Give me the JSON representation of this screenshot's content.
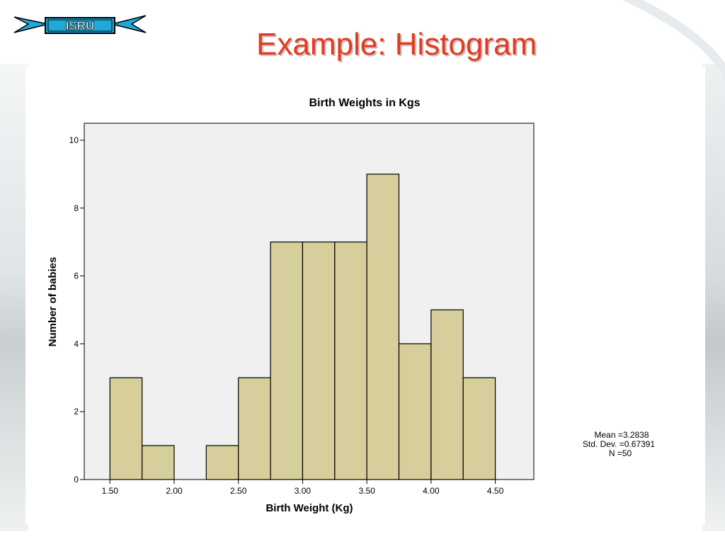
{
  "slide": {
    "title": "Example: Histogram",
    "logo_text": "ISRU",
    "colors": {
      "title": "#e8391f",
      "bar_fill": "#d6cf9b",
      "plot_bg": "#f0f0f0",
      "logo_fill": "#1fa9d8"
    }
  },
  "chart_data": {
    "type": "bar",
    "title": "Birth Weights in Kgs",
    "xlabel": "Birth Weight (Kg)",
    "ylabel": "Number of babies",
    "bin_width": 0.25,
    "bins": [
      {
        "start": 1.5,
        "end": 1.75,
        "count": 3
      },
      {
        "start": 1.75,
        "end": 2.0,
        "count": 1
      },
      {
        "start": 2.0,
        "end": 2.25,
        "count": 0
      },
      {
        "start": 2.25,
        "end": 2.5,
        "count": 1
      },
      {
        "start": 2.5,
        "end": 2.75,
        "count": 3
      },
      {
        "start": 2.75,
        "end": 3.0,
        "count": 7
      },
      {
        "start": 3.0,
        "end": 3.25,
        "count": 7
      },
      {
        "start": 3.25,
        "end": 3.5,
        "count": 7
      },
      {
        "start": 3.5,
        "end": 3.75,
        "count": 9
      },
      {
        "start": 3.75,
        "end": 4.0,
        "count": 4
      },
      {
        "start": 4.0,
        "end": 4.25,
        "count": 5
      },
      {
        "start": 4.25,
        "end": 4.5,
        "count": 3
      }
    ],
    "xlim": [
      1.3,
      4.8
    ],
    "ylim": [
      0,
      10.5
    ],
    "x_ticks": [
      1.5,
      2.0,
      2.5,
      3.0,
      3.5,
      4.0,
      4.5
    ],
    "x_tick_labels": [
      "1.50",
      "2.00",
      "2.50",
      "3.00",
      "3.50",
      "4.00",
      "4.50"
    ],
    "y_ticks": [
      0,
      2,
      4,
      6,
      8,
      10
    ],
    "y_tick_labels": [
      "0",
      "2",
      "4",
      "6",
      "8",
      "10"
    ],
    "grid": false,
    "stats": {
      "mean": "Mean =3.2838",
      "std_dev": "Std. Dev. =0.67391",
      "n": "N =50"
    }
  }
}
